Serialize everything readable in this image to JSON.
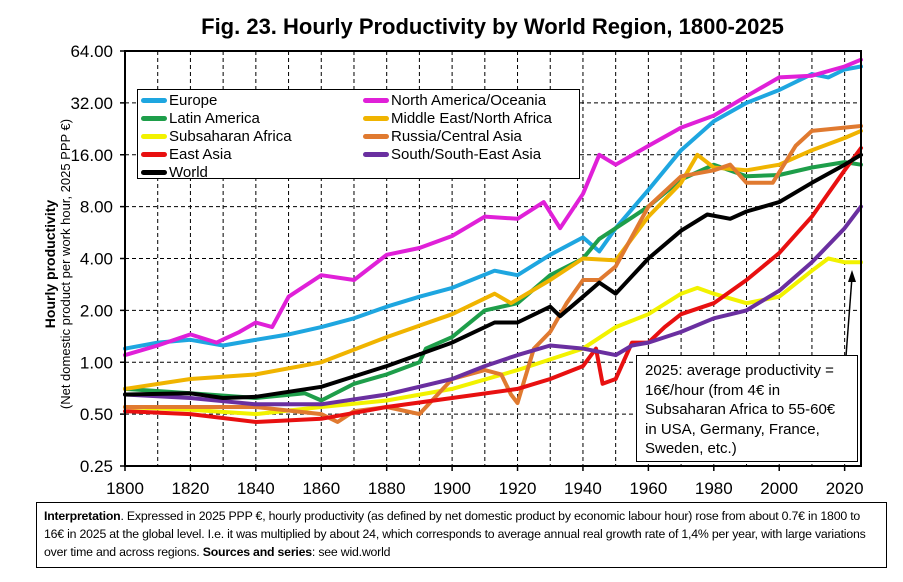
{
  "chart_data": {
    "type": "line",
    "title": "Fig. 23. Hourly Productivity by World Region, 1800-2025",
    "ylabel": "Hourly productivity",
    "ylabel_sub": "(Net domestic product per work hour, 2025 PPP €)",
    "xlabel": "",
    "xlim": [
      1800,
      2025
    ],
    "ylim": [
      0.25,
      64
    ],
    "yscale": "log2",
    "grid": true,
    "legend_position": "top-left",
    "x_ticks": [
      "1800",
      "1820",
      "1840",
      "1860",
      "1880",
      "1900",
      "1920",
      "1940",
      "1960",
      "1980",
      "2000",
      "2020"
    ],
    "y_ticks": [
      "0.25",
      "0.50",
      "1.00",
      "2.00",
      "4.00",
      "8.00",
      "16.00",
      "32.00",
      "64.00"
    ],
    "series": [
      {
        "name": "Europe",
        "color": "#1ea6e0",
        "points": [
          [
            1800,
            1.2
          ],
          [
            1810,
            1.3
          ],
          [
            1820,
            1.35
          ],
          [
            1830,
            1.25
          ],
          [
            1840,
            1.35
          ],
          [
            1850,
            1.45
          ],
          [
            1860,
            1.6
          ],
          [
            1870,
            1.8
          ],
          [
            1880,
            2.1
          ],
          [
            1890,
            2.4
          ],
          [
            1900,
            2.7
          ],
          [
            1913,
            3.4
          ],
          [
            1920,
            3.2
          ],
          [
            1930,
            4.2
          ],
          [
            1940,
            5.3
          ],
          [
            1945,
            4.4
          ],
          [
            1950,
            6
          ],
          [
            1960,
            10
          ],
          [
            1970,
            17
          ],
          [
            1980,
            25
          ],
          [
            1990,
            32
          ],
          [
            2000,
            38
          ],
          [
            2010,
            47
          ],
          [
            2015,
            45
          ],
          [
            2020,
            50
          ],
          [
            2025,
            52
          ]
        ]
      },
      {
        "name": "North America/Oceania",
        "color": "#e020d8",
        "points": [
          [
            1800,
            1.1
          ],
          [
            1810,
            1.25
          ],
          [
            1820,
            1.45
          ],
          [
            1828,
            1.3
          ],
          [
            1835,
            1.5
          ],
          [
            1840,
            1.7
          ],
          [
            1845,
            1.6
          ],
          [
            1850,
            2.4
          ],
          [
            1860,
            3.2
          ],
          [
            1870,
            3.0
          ],
          [
            1880,
            4.2
          ],
          [
            1890,
            4.6
          ],
          [
            1900,
            5.4
          ],
          [
            1910,
            7
          ],
          [
            1920,
            6.8
          ],
          [
            1928,
            8.5
          ],
          [
            1933,
            6
          ],
          [
            1940,
            9.5
          ],
          [
            1945,
            16
          ],
          [
            1950,
            14
          ],
          [
            1960,
            18
          ],
          [
            1970,
            23
          ],
          [
            1980,
            27
          ],
          [
            1990,
            35
          ],
          [
            2000,
            45
          ],
          [
            2010,
            46
          ],
          [
            2020,
            52
          ],
          [
            2025,
            57
          ]
        ]
      },
      {
        "name": "Latin America",
        "color": "#1e9e4a",
        "points": [
          [
            1800,
            0.7
          ],
          [
            1820,
            0.66
          ],
          [
            1840,
            0.62
          ],
          [
            1855,
            0.66
          ],
          [
            1860,
            0.6
          ],
          [
            1870,
            0.75
          ],
          [
            1880,
            0.85
          ],
          [
            1890,
            1.0
          ],
          [
            1892,
            1.2
          ],
          [
            1900,
            1.4
          ],
          [
            1910,
            2.0
          ],
          [
            1920,
            2.2
          ],
          [
            1930,
            3.2
          ],
          [
            1940,
            4.0
          ],
          [
            1945,
            5.2
          ],
          [
            1950,
            6
          ],
          [
            1960,
            8
          ],
          [
            1970,
            11.5
          ],
          [
            1980,
            14
          ],
          [
            1990,
            12
          ],
          [
            2000,
            12.2
          ],
          [
            2010,
            13.5
          ],
          [
            2020,
            14.5
          ],
          [
            2025,
            14
          ]
        ]
      },
      {
        "name": "Middle East/North Africa",
        "color": "#f0b400",
        "points": [
          [
            1800,
            0.7
          ],
          [
            1820,
            0.8
          ],
          [
            1840,
            0.85
          ],
          [
            1860,
            1.0
          ],
          [
            1880,
            1.4
          ],
          [
            1900,
            1.9
          ],
          [
            1913,
            2.5
          ],
          [
            1918,
            2.2
          ],
          [
            1930,
            3.0
          ],
          [
            1940,
            4.0
          ],
          [
            1950,
            3.9
          ],
          [
            1960,
            7
          ],
          [
            1970,
            11
          ],
          [
            1975,
            16
          ],
          [
            1980,
            13.5
          ],
          [
            1990,
            13
          ],
          [
            2000,
            14
          ],
          [
            2010,
            17
          ],
          [
            2020,
            20
          ],
          [
            2025,
            22
          ]
        ]
      },
      {
        "name": "Subsaharan Africa",
        "color": "#f2f200",
        "points": [
          [
            1800,
            0.55
          ],
          [
            1820,
            0.53
          ],
          [
            1840,
            0.5
          ],
          [
            1860,
            0.55
          ],
          [
            1880,
            0.6
          ],
          [
            1900,
            0.7
          ],
          [
            1920,
            0.9
          ],
          [
            1940,
            1.2
          ],
          [
            1950,
            1.6
          ],
          [
            1960,
            1.9
          ],
          [
            1970,
            2.5
          ],
          [
            1975,
            2.7
          ],
          [
            1980,
            2.5
          ],
          [
            1990,
            2.2
          ],
          [
            2000,
            2.4
          ],
          [
            2010,
            3.4
          ],
          [
            2015,
            4.0
          ],
          [
            2020,
            3.8
          ],
          [
            2025,
            3.8
          ]
        ]
      },
      {
        "name": "Russia/Central Asia",
        "color": "#e07a30",
        "points": [
          [
            1800,
            0.55
          ],
          [
            1840,
            0.55
          ],
          [
            1860,
            0.5
          ],
          [
            1865,
            0.45
          ],
          [
            1870,
            0.52
          ],
          [
            1880,
            0.55
          ],
          [
            1890,
            0.5
          ],
          [
            1900,
            0.8
          ],
          [
            1910,
            0.9
          ],
          [
            1915,
            0.85
          ],
          [
            1918,
            0.65
          ],
          [
            1920,
            0.58
          ],
          [
            1925,
            1.2
          ],
          [
            1930,
            1.5
          ],
          [
            1935,
            2.2
          ],
          [
            1940,
            3.0
          ],
          [
            1945,
            3.0
          ],
          [
            1950,
            3.6
          ],
          [
            1960,
            8
          ],
          [
            1970,
            12
          ],
          [
            1980,
            13
          ],
          [
            1985,
            14
          ],
          [
            1990,
            11
          ],
          [
            1998,
            11
          ],
          [
            2005,
            18
          ],
          [
            2010,
            22
          ],
          [
            2020,
            23
          ],
          [
            2025,
            23.5
          ]
        ]
      },
      {
        "name": "East Asia",
        "color": "#e81010",
        "points": [
          [
            1800,
            0.52
          ],
          [
            1820,
            0.5
          ],
          [
            1840,
            0.45
          ],
          [
            1860,
            0.47
          ],
          [
            1880,
            0.55
          ],
          [
            1900,
            0.62
          ],
          [
            1920,
            0.7
          ],
          [
            1930,
            0.8
          ],
          [
            1940,
            0.95
          ],
          [
            1944,
            1.2
          ],
          [
            1946,
            0.75
          ],
          [
            1950,
            0.8
          ],
          [
            1955,
            1.3
          ],
          [
            1960,
            1.3
          ],
          [
            1965,
            1.6
          ],
          [
            1970,
            1.9
          ],
          [
            1980,
            2.2
          ],
          [
            1990,
            3.0
          ],
          [
            2000,
            4.3
          ],
          [
            2010,
            7
          ],
          [
            2020,
            13
          ],
          [
            2025,
            17.5
          ]
        ]
      },
      {
        "name": "South/South-East Asia",
        "color": "#6a2fa0",
        "points": [
          [
            1800,
            0.65
          ],
          [
            1820,
            0.62
          ],
          [
            1840,
            0.57
          ],
          [
            1860,
            0.57
          ],
          [
            1880,
            0.65
          ],
          [
            1900,
            0.8
          ],
          [
            1910,
            0.95
          ],
          [
            1920,
            1.1
          ],
          [
            1930,
            1.25
          ],
          [
            1940,
            1.2
          ],
          [
            1950,
            1.1
          ],
          [
            1955,
            1.25
          ],
          [
            1960,
            1.3
          ],
          [
            1970,
            1.5
          ],
          [
            1980,
            1.8
          ],
          [
            1990,
            2.0
          ],
          [
            2000,
            2.6
          ],
          [
            2010,
            3.8
          ],
          [
            2020,
            6
          ],
          [
            2025,
            8
          ]
        ]
      },
      {
        "name": "World",
        "color": "#000000",
        "points": [
          [
            1800,
            0.65
          ],
          [
            1820,
            0.66
          ],
          [
            1830,
            0.62
          ],
          [
            1840,
            0.63
          ],
          [
            1860,
            0.72
          ],
          [
            1880,
            0.95
          ],
          [
            1900,
            1.3
          ],
          [
            1913,
            1.7
          ],
          [
            1920,
            1.7
          ],
          [
            1930,
            2.1
          ],
          [
            1933,
            1.85
          ],
          [
            1940,
            2.4
          ],
          [
            1945,
            2.9
          ],
          [
            1950,
            2.5
          ],
          [
            1960,
            4.0
          ],
          [
            1970,
            5.8
          ],
          [
            1978,
            7.2
          ],
          [
            1985,
            6.8
          ],
          [
            1990,
            7.5
          ],
          [
            2000,
            8.5
          ],
          [
            2010,
            11
          ],
          [
            2020,
            14
          ],
          [
            2025,
            16
          ]
        ]
      }
    ],
    "annotation": "2025: average productivity = 16€/hour (from 4€ in Subsaharan Africa to 55-60€ in USA, Germany, France, Sweden, etc.)"
  },
  "interpretation": {
    "label": "Interpretation",
    "text": ". Expressed in 2025 PPP €, hourly productivity (as defined by net domestic product by economic labour hour) rose from about 0.7€ in 1800 to 16€ in 2025 at the global level. I.e. it was multiplied by about 24, which corresponds to average annual real growth rate of 1,4% per year, with large variations over time and across regions. ",
    "sources_label": "Sources and series",
    "sources_text": ": see wid.world"
  }
}
